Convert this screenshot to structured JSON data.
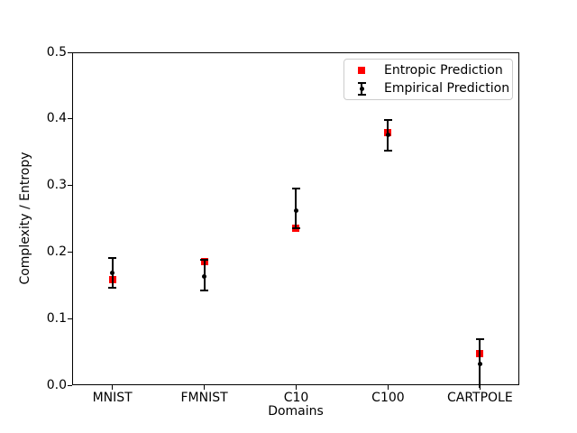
{
  "figure": {
    "background": "#ffffff"
  },
  "chart_data": {
    "type": "scatter",
    "title": "",
    "xlabel": "Domains",
    "ylabel": "Complexity / Entropy",
    "categories": [
      "MNIST",
      "FMNIST",
      "C10",
      "C100",
      "CARTPOLE"
    ],
    "ylim": [
      0.0,
      0.5
    ],
    "yticks": [
      0.0,
      0.1,
      0.2,
      0.3,
      0.4,
      0.5
    ],
    "ytick_labels": [
      "0.0",
      "0.1",
      "0.2",
      "0.3",
      "0.4",
      "0.5"
    ],
    "grid": false,
    "legend_position": "upper right",
    "series": [
      {
        "name": "Entropic Prediction",
        "type": "scatter",
        "marker": "square",
        "color": "#ff0000",
        "values": [
          0.159,
          0.186,
          0.236,
          0.379,
          0.047
        ]
      },
      {
        "name": "Empirical Prediction",
        "type": "errorbar",
        "marker": "point",
        "color": "#000000",
        "values": [
          0.169,
          0.163,
          0.262,
          0.376,
          0.032
        ],
        "err_upper": [
          0.191,
          0.188,
          0.295,
          0.399,
          0.069
        ],
        "err_lower": [
          0.147,
          0.142,
          0.236,
          0.352,
          -0.004
        ]
      }
    ]
  }
}
